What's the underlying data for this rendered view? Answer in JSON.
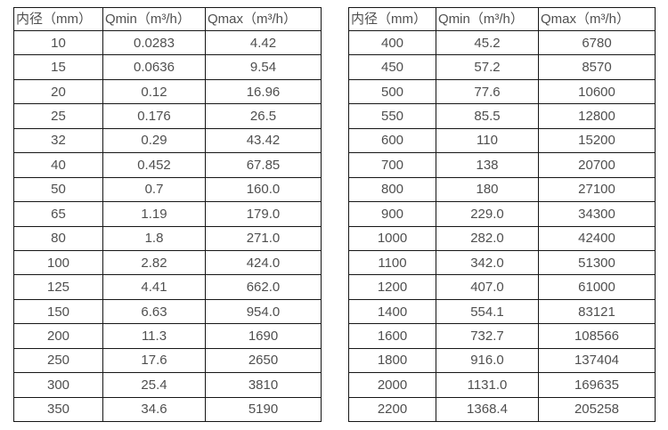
{
  "tables": [
    {
      "name": "flow-rate-table-small-diameters",
      "headers": [
        "内径（mm）",
        "Qmin（m³/h）",
        "Qmax（m³/h）"
      ],
      "rows": [
        [
          "10",
          "0.0283",
          "4.42"
        ],
        [
          "15",
          "0.0636",
          "9.54"
        ],
        [
          "20",
          "0.12",
          "16.96"
        ],
        [
          "25",
          "0.176",
          "26.5"
        ],
        [
          "32",
          "0.29",
          "43.42"
        ],
        [
          "40",
          "0.452",
          "67.85"
        ],
        [
          "50",
          "0.7",
          "160.0"
        ],
        [
          "65",
          "1.19",
          "179.0"
        ],
        [
          "80",
          "1.8",
          "271.0"
        ],
        [
          "100",
          "2.82",
          "424.0"
        ],
        [
          "125",
          "4.41",
          "662.0"
        ],
        [
          "150",
          "6.63",
          "954.0"
        ],
        [
          "200",
          "11.3",
          "1690"
        ],
        [
          "250",
          "17.6",
          "2650"
        ],
        [
          "300",
          "25.4",
          "3810"
        ],
        [
          "350",
          "34.6",
          "5190"
        ]
      ]
    },
    {
      "name": "flow-rate-table-large-diameters",
      "headers": [
        "内径（mm）",
        "Qmin（m³/h）",
        "Qmax（m³/h）"
      ],
      "rows": [
        [
          "400",
          "45.2",
          "6780"
        ],
        [
          "450",
          "57.2",
          "8570"
        ],
        [
          "500",
          "77.6",
          "10600"
        ],
        [
          "550",
          "85.5",
          "12800"
        ],
        [
          "600",
          "110",
          "15200"
        ],
        [
          "700",
          "138",
          "20700"
        ],
        [
          "800",
          "180",
          "27100"
        ],
        [
          "900",
          "229.0",
          "34300"
        ],
        [
          "1000",
          "282.0",
          "42400"
        ],
        [
          "1100",
          "342.0",
          "51300"
        ],
        [
          "1200",
          "407.0",
          "61000"
        ],
        [
          "1400",
          "554.1",
          "83121"
        ],
        [
          "1600",
          "732.7",
          "108566"
        ],
        [
          "1800",
          "916.0",
          "137404"
        ],
        [
          "2000",
          "1131.0",
          "169635"
        ],
        [
          "2200",
          "1368.4",
          "205258"
        ]
      ]
    }
  ],
  "colors": {
    "text": "#4f4f4f",
    "border": "#161616",
    "background": "#ffffff"
  }
}
